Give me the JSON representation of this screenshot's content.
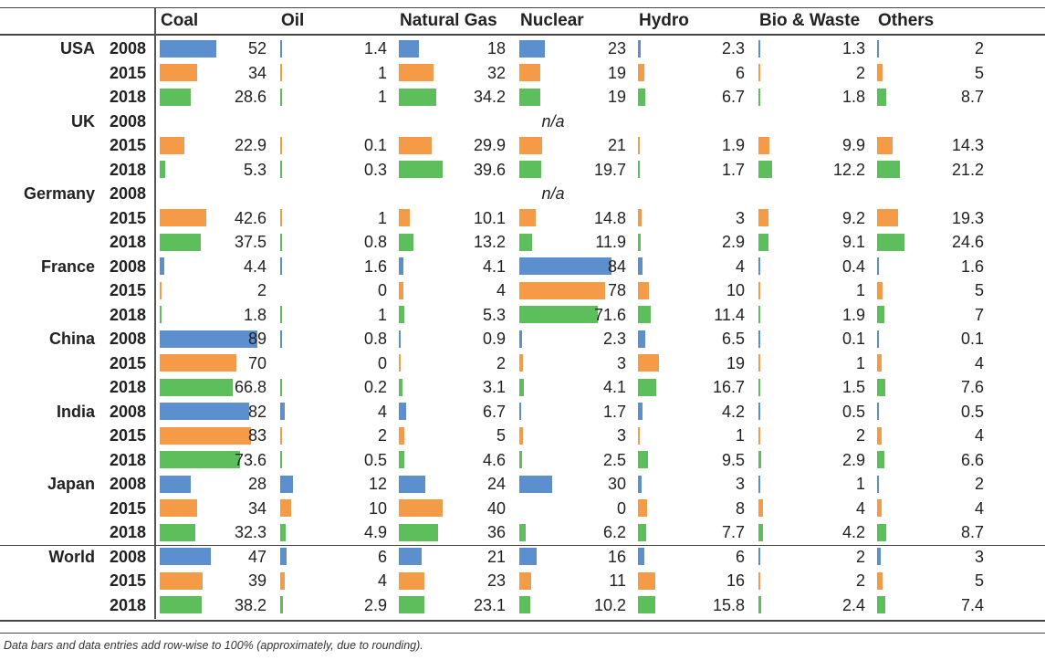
{
  "chart_data": {
    "type": "table",
    "title": "",
    "columns": [
      "Coal",
      "Oil",
      "Natural Gas",
      "Nuclear",
      "Hydro",
      "Bio & Waste",
      "Others"
    ],
    "year_colors": {
      "2008": "#5b8fce",
      "2015": "#f59a46",
      "2018": "#5cbf5c"
    },
    "na_label": "n/a",
    "groups": [
      {
        "country": "USA",
        "rows": [
          {
            "year": "2008",
            "values": [
              "52",
              "1.4",
              "18",
              "23",
              "2.3",
              "1.3",
              "2"
            ]
          },
          {
            "year": "2015",
            "values": [
              "34",
              "1",
              "32",
              "19",
              "6",
              "2",
              "5"
            ]
          },
          {
            "year": "2018",
            "values": [
              "28.6",
              "1",
              "34.2",
              "19",
              "6.7",
              "1.8",
              "8.7"
            ]
          }
        ]
      },
      {
        "country": "UK",
        "rows": [
          {
            "year": "2008",
            "values": null
          },
          {
            "year": "2015",
            "values": [
              "22.9",
              "0.1",
              "29.9",
              "21",
              "1.9",
              "9.9",
              "14.3"
            ]
          },
          {
            "year": "2018",
            "values": [
              "5.3",
              "0.3",
              "39.6",
              "19.7",
              "1.7",
              "12.2",
              "21.2"
            ]
          }
        ]
      },
      {
        "country": "Germany",
        "rows": [
          {
            "year": "2008",
            "values": null
          },
          {
            "year": "2015",
            "values": [
              "42.6",
              "1",
              "10.1",
              "14.8",
              "3",
              "9.2",
              "19.3"
            ]
          },
          {
            "year": "2018",
            "values": [
              "37.5",
              "0.8",
              "13.2",
              "11.9",
              "2.9",
              "9.1",
              "24.6"
            ]
          }
        ]
      },
      {
        "country": "France",
        "rows": [
          {
            "year": "2008",
            "values": [
              "4.4",
              "1.6",
              "4.1",
              "84",
              "4",
              "0.4",
              "1.6"
            ]
          },
          {
            "year": "2015",
            "values": [
              "2",
              "0",
              "4",
              "78",
              "10",
              "1",
              "5"
            ]
          },
          {
            "year": "2018",
            "values": [
              "1.8",
              "1",
              "5.3",
              "71.6",
              "11.4",
              "1.9",
              "7"
            ]
          }
        ]
      },
      {
        "country": "China",
        "rows": [
          {
            "year": "2008",
            "values": [
              "89",
              "0.8",
              "0.9",
              "2.3",
              "6.5",
              "0.1",
              "0.1"
            ]
          },
          {
            "year": "2015",
            "values": [
              "70",
              "0",
              "2",
              "3",
              "19",
              "1",
              "4"
            ]
          },
          {
            "year": "2018",
            "values": [
              "66.8",
              "0.2",
              "3.1",
              "4.1",
              "16.7",
              "1.5",
              "7.6"
            ]
          }
        ]
      },
      {
        "country": "India",
        "rows": [
          {
            "year": "2008",
            "values": [
              "82",
              "4",
              "6.7",
              "1.7",
              "4.2",
              "0.5",
              "0.5"
            ]
          },
          {
            "year": "2015",
            "values": [
              "83",
              "2",
              "5",
              "3",
              "1",
              "2",
              "4"
            ]
          },
          {
            "year": "2018",
            "values": [
              "73.6",
              "0.5",
              "4.6",
              "2.5",
              "9.5",
              "2.9",
              "6.6"
            ]
          }
        ]
      },
      {
        "country": "Japan",
        "rows": [
          {
            "year": "2008",
            "values": [
              "28",
              "12",
              "24",
              "30",
              "3",
              "1",
              "2"
            ]
          },
          {
            "year": "2015",
            "values": [
              "34",
              "10",
              "40",
              "0",
              "8",
              "4",
              "4"
            ]
          },
          {
            "year": "2018",
            "values": [
              "32.3",
              "4.9",
              "36",
              "6.2",
              "7.7",
              "4.2",
              "8.7"
            ]
          }
        ]
      },
      {
        "country": "World",
        "rows": [
          {
            "year": "2008",
            "values": [
              "47",
              "6",
              "21",
              "16",
              "6",
              "2",
              "3"
            ]
          },
          {
            "year": "2015",
            "values": [
              "39",
              "4",
              "23",
              "11",
              "16",
              "2",
              "5"
            ]
          },
          {
            "year": "2018",
            "values": [
              "38.2",
              "2.9",
              "23.1",
              "10.2",
              "15.8",
              "2.4",
              "7.4"
            ]
          }
        ]
      }
    ],
    "note": "Data bars and data entries add row-wise to 100% (approximately, due to rounding)."
  }
}
